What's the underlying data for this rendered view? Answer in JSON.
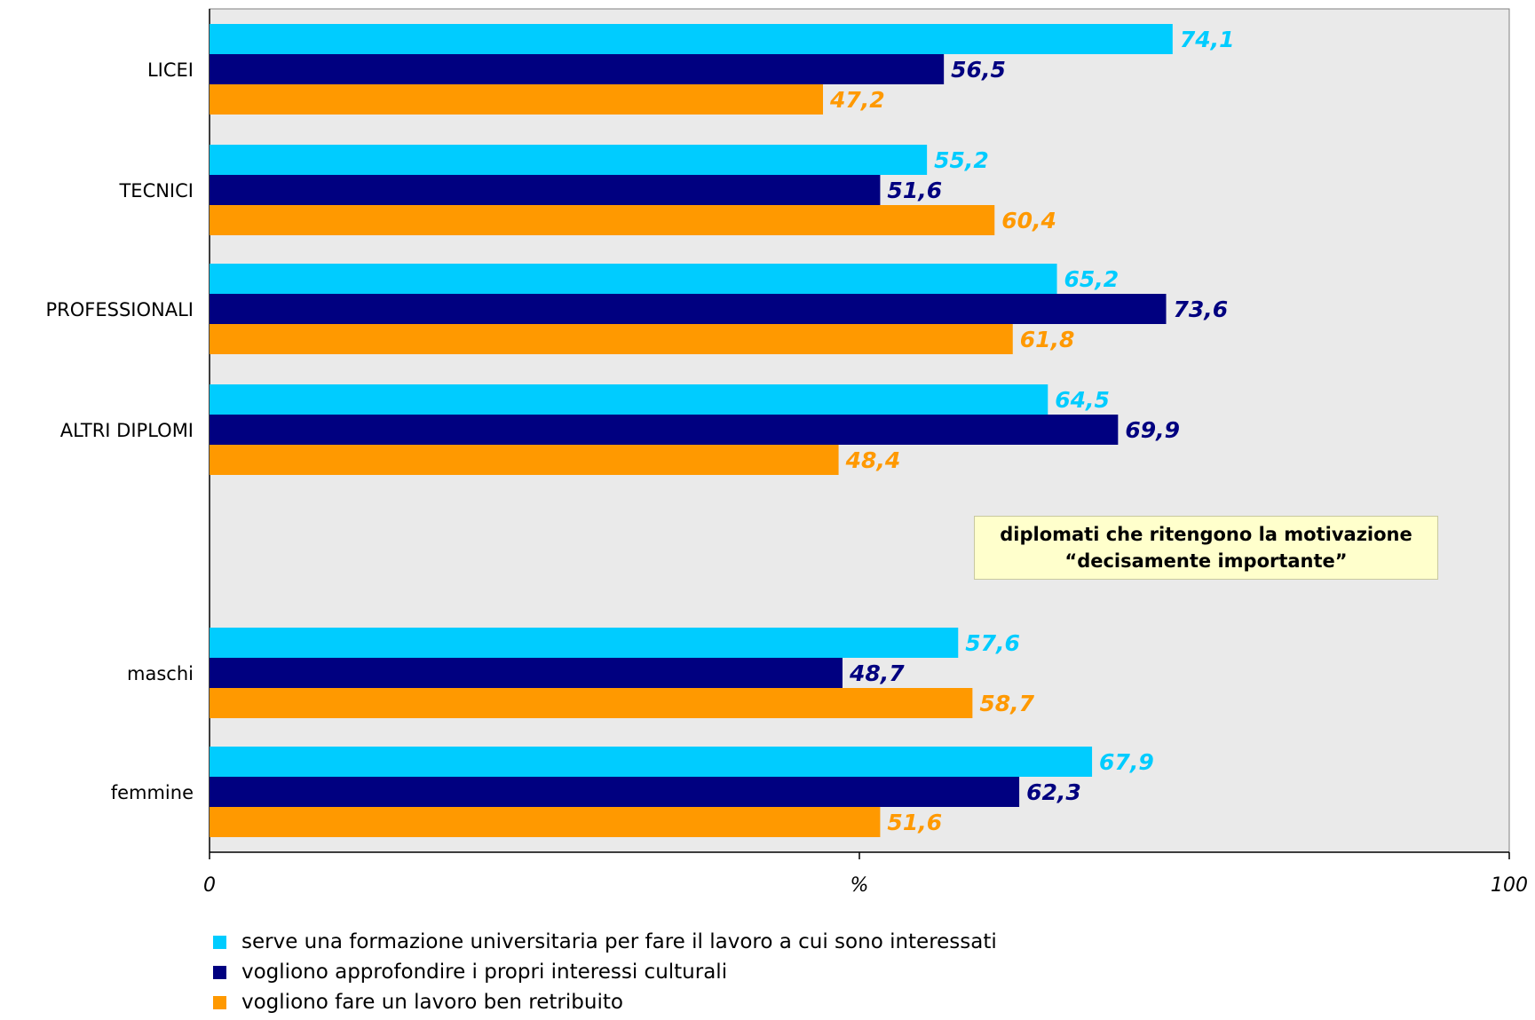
{
  "chart_data": {
    "type": "bar",
    "orientation": "horizontal",
    "categories": [
      "LICEI",
      "TECNICI",
      "PROFESSIONALI",
      "ALTRI DIPLOMI",
      "maschi",
      "femmine"
    ],
    "series": [
      {
        "name": "serve una formazione universitaria per fare il lavoro a cui sono interessati",
        "color": "#00ccff",
        "values": [
          74.1,
          55.2,
          65.2,
          64.5,
          57.6,
          67.9
        ]
      },
      {
        "name": "vogliono approfondire i propri interessi culturali",
        "color": "#000080",
        "values": [
          56.5,
          51.6,
          73.6,
          69.9,
          48.7,
          62.3
        ]
      },
      {
        "name": "vogliono fare un lavoro ben retribuito",
        "color": "#ff9900",
        "values": [
          47.2,
          60.4,
          61.8,
          48.4,
          58.7,
          51.6
        ]
      }
    ],
    "data_labels": [
      [
        "74,1",
        "55,2",
        "65,2",
        "64,5",
        "57,6",
        "67,9"
      ],
      [
        "56,5",
        "51,6",
        "73,6",
        "69,9",
        "48,7",
        "62,3"
      ],
      [
        "47,2",
        "60,4",
        "61,8",
        "48,4",
        "58,7",
        "51,6"
      ]
    ],
    "xlim": [
      0,
      100
    ],
    "x_ticks": [
      "0",
      "%",
      "100"
    ],
    "xlabel": "%",
    "plot_background": "#eaeaea",
    "grid": false,
    "legend_position": "bottom",
    "annotation": {
      "line1": "diplomati che ritengono la motivazione",
      "line2": "“decisamente importante”"
    }
  }
}
